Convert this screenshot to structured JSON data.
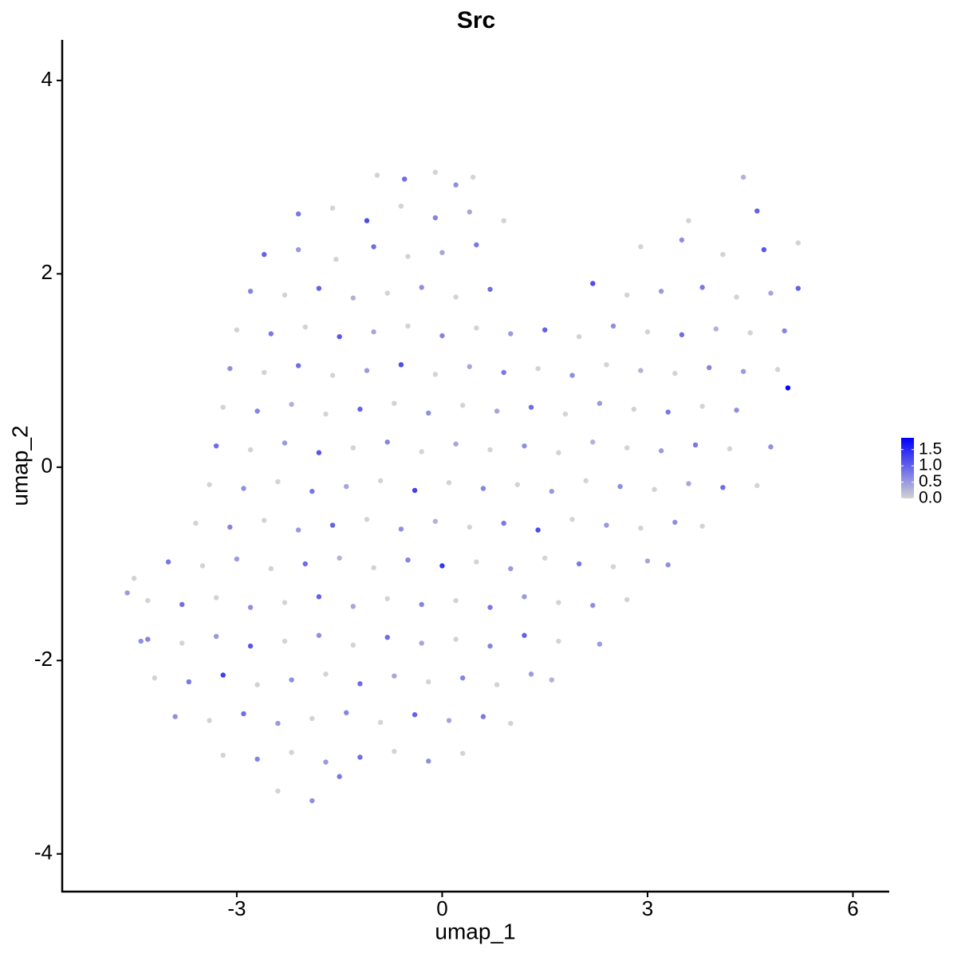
{
  "chart_data": {
    "type": "scatter",
    "title": "Src",
    "x_label": "umap_1",
    "y_label": "umap_2",
    "xlim": [
      -5.55,
      6.53
    ],
    "ylim": [
      -4.39,
      4.42
    ],
    "xticks": [
      -3,
      0,
      3,
      6
    ],
    "yticks": [
      -4,
      -2,
      0,
      2,
      4
    ],
    "color_low": "#d3d3d3",
    "color_high": "#0000ff",
    "clim": [
      0,
      1.86
    ],
    "cticks": [
      {
        "value": 0,
        "label": "0.0"
      },
      {
        "value": 0.5,
        "label": "0.5"
      },
      {
        "value": 1,
        "label": "1.0"
      },
      {
        "value": 1.5,
        "label": "1.5"
      }
    ],
    "x": [
      -0.95,
      -0.55,
      -0.1,
      0.2,
      0.45,
      4.4,
      -2.1,
      -1.6,
      -1.1,
      -0.6,
      -0.1,
      0.4,
      0.9,
      3.6,
      4.6,
      -2.6,
      -2.1,
      -1.55,
      -1.0,
      -0.5,
      0.0,
      0.5,
      2.9,
      3.5,
      4.1,
      4.7,
      5.2,
      -2.8,
      -2.3,
      -1.8,
      -1.3,
      -0.8,
      -0.3,
      0.2,
      0.7,
      2.2,
      2.7,
      3.2,
      3.8,
      4.3,
      4.8,
      5.2,
      -3.0,
      -2.5,
      -2.0,
      -1.5,
      -1.0,
      -0.5,
      0.0,
      0.5,
      1.0,
      1.5,
      2.0,
      2.5,
      3.0,
      3.5,
      4.0,
      4.5,
      5.0,
      -3.1,
      -2.6,
      -2.1,
      -1.6,
      -1.1,
      -0.6,
      -0.1,
      0.4,
      0.9,
      1.4,
      1.9,
      2.4,
      2.9,
      3.4,
      3.9,
      4.4,
      4.9,
      -3.2,
      -2.7,
      -2.2,
      -1.7,
      -1.2,
      -0.7,
      -0.2,
      0.3,
      0.8,
      1.3,
      1.8,
      2.3,
      2.8,
      3.3,
      3.8,
      4.3,
      5.05,
      -3.3,
      -2.8,
      -2.3,
      -1.8,
      -1.3,
      -0.8,
      -0.3,
      0.2,
      0.7,
      1.2,
      1.7,
      2.2,
      2.7,
      3.2,
      3.7,
      4.2,
      4.8,
      -3.4,
      -2.9,
      -2.4,
      -1.9,
      -1.4,
      -0.9,
      -0.4,
      0.1,
      0.6,
      1.1,
      1.6,
      2.1,
      2.6,
      3.1,
      3.6,
      4.1,
      4.6,
      -3.6,
      -3.1,
      -2.6,
      -2.1,
      -1.6,
      -1.1,
      -0.6,
      -0.1,
      0.4,
      0.9,
      1.4,
      1.9,
      2.4,
      2.9,
      3.4,
      3.8,
      -4.0,
      -3.5,
      -3.0,
      -2.5,
      -2.0,
      -1.5,
      -1.0,
      -0.5,
      0.0,
      0.5,
      1.0,
      1.5,
      2.0,
      2.5,
      3.0,
      3.3,
      -4.3,
      -3.8,
      -3.3,
      -2.8,
      -2.3,
      -1.8,
      -1.3,
      -0.8,
      -0.3,
      0.2,
      0.7,
      1.2,
      1.7,
      2.2,
      2.7,
      -4.3,
      -3.8,
      -3.3,
      -2.8,
      -2.3,
      -1.8,
      -1.3,
      -0.8,
      -0.3,
      0.2,
      0.7,
      1.2,
      1.7,
      2.3,
      -4.2,
      -3.7,
      -3.2,
      -2.7,
      -2.2,
      -1.7,
      -1.2,
      -0.7,
      -0.2,
      0.3,
      0.8,
      1.3,
      1.6,
      -3.9,
      -3.4,
      -2.9,
      -2.4,
      -1.9,
      -1.4,
      -0.9,
      -0.4,
      0.1,
      0.6,
      1.0,
      -3.2,
      -2.7,
      -2.2,
      -1.7,
      -1.2,
      -0.7,
      -0.2,
      0.3,
      -2.4,
      -1.9,
      -1.5,
      -4.6,
      -4.5,
      -4.4
    ],
    "y": [
      3.02,
      2.98,
      3.05,
      2.92,
      3.0,
      3.0,
      2.62,
      2.68,
      2.55,
      2.7,
      2.58,
      2.64,
      2.55,
      2.55,
      2.65,
      2.2,
      2.25,
      2.15,
      2.28,
      2.18,
      2.22,
      2.3,
      2.28,
      2.35,
      2.2,
      2.25,
      2.32,
      1.82,
      1.78,
      1.85,
      1.75,
      1.8,
      1.86,
      1.76,
      1.84,
      1.9,
      1.78,
      1.82,
      1.86,
      1.76,
      1.8,
      1.85,
      1.42,
      1.38,
      1.45,
      1.35,
      1.4,
      1.46,
      1.36,
      1.44,
      1.38,
      1.42,
      1.35,
      1.46,
      1.4,
      1.37,
      1.43,
      1.39,
      1.41,
      1.02,
      0.98,
      1.05,
      0.95,
      1.0,
      1.06,
      0.96,
      1.04,
      0.98,
      1.02,
      0.95,
      1.06,
      1.0,
      0.97,
      1.03,
      0.99,
      1.01,
      0.62,
      0.58,
      0.65,
      0.55,
      0.6,
      0.66,
      0.56,
      0.64,
      0.58,
      0.62,
      0.55,
      0.66,
      0.6,
      0.57,
      0.63,
      0.59,
      0.82,
      0.22,
      0.18,
      0.25,
      0.15,
      0.2,
      0.26,
      0.16,
      0.24,
      0.18,
      0.22,
      0.15,
      0.26,
      0.2,
      0.17,
      0.23,
      0.19,
      0.21,
      -0.18,
      -0.22,
      -0.15,
      -0.25,
      -0.2,
      -0.14,
      -0.24,
      -0.16,
      -0.22,
      -0.18,
      -0.25,
      -0.14,
      -0.2,
      -0.23,
      -0.17,
      -0.21,
      -0.19,
      -0.58,
      -0.62,
      -0.55,
      -0.65,
      -0.6,
      -0.54,
      -0.64,
      -0.56,
      -0.62,
      -0.58,
      -0.65,
      -0.54,
      -0.6,
      -0.63,
      -0.57,
      -0.61,
      -0.98,
      -1.02,
      -0.95,
      -1.05,
      -1.0,
      -0.94,
      -1.04,
      -0.96,
      -1.02,
      -0.98,
      -1.05,
      -0.94,
      -1.0,
      -1.03,
      -0.97,
      -1.01,
      -1.38,
      -1.42,
      -1.35,
      -1.45,
      -1.4,
      -1.34,
      -1.44,
      -1.36,
      -1.42,
      -1.38,
      -1.45,
      -1.34,
      -1.4,
      -1.43,
      -1.37,
      -1.78,
      -1.82,
      -1.75,
      -1.85,
      -1.8,
      -1.74,
      -1.84,
      -1.76,
      -1.82,
      -1.78,
      -1.85,
      -1.74,
      -1.8,
      -1.83,
      -2.18,
      -2.22,
      -2.15,
      -2.25,
      -2.2,
      -2.14,
      -2.24,
      -2.16,
      -2.22,
      -2.18,
      -2.25,
      -2.14,
      -2.2,
      -2.58,
      -2.62,
      -2.55,
      -2.65,
      -2.6,
      -2.54,
      -2.64,
      -2.56,
      -2.62,
      -2.58,
      -2.65,
      -2.98,
      -3.02,
      -2.95,
      -3.05,
      -3.0,
      -2.94,
      -3.04,
      -2.96,
      -3.35,
      -3.45,
      -3.2,
      -1.3,
      -1.15,
      -1.8
    ],
    "values": [
      0,
      0.9,
      0,
      0.6,
      0,
      0.3,
      0.8,
      0,
      1.2,
      0,
      0.7,
      0.4,
      0,
      0,
      1.0,
      1.0,
      0.5,
      0,
      0.9,
      0,
      0.4,
      0.8,
      0,
      0.6,
      0,
      1.1,
      0,
      0.7,
      0,
      1.0,
      0.3,
      0,
      0.6,
      0,
      0.9,
      1.2,
      0,
      0.5,
      0.8,
      0,
      0.4,
      1.0,
      0,
      0.8,
      0,
      1.1,
      0.4,
      0,
      0.7,
      0,
      0.5,
      1.0,
      0,
      0.6,
      0,
      0.9,
      0.3,
      0,
      0.7,
      0.6,
      0,
      0.9,
      0,
      0.5,
      1.2,
      0,
      0.4,
      0.8,
      0,
      0.6,
      0,
      0.3,
      0,
      0.7,
      0.5,
      0,
      0,
      0.7,
      0.3,
      0,
      1.0,
      0,
      0.6,
      0,
      0.4,
      0.9,
      0,
      0.5,
      0,
      0.8,
      0,
      0.6,
      1.85,
      0.9,
      0,
      0.5,
      1.1,
      0,
      0.7,
      0,
      0.4,
      0,
      0.6,
      0,
      0.3,
      0,
      0.5,
      0.8,
      0,
      0.6,
      0,
      0.6,
      0,
      0.8,
      0.4,
      0,
      1.3,
      0,
      0.7,
      0,
      0.5,
      0,
      0.6,
      0,
      0.4,
      0.9,
      0,
      0,
      0.7,
      0,
      0.5,
      1.0,
      0,
      0.6,
      0.3,
      0,
      0.8,
      1.2,
      0,
      0.5,
      0,
      0.6,
      0,
      0.8,
      0,
      0.5,
      0,
      0.9,
      0.3,
      0,
      0.7,
      1.4,
      0,
      0.5,
      0,
      0.8,
      0,
      0.4,
      0.6,
      0,
      0.9,
      0,
      0.6,
      0,
      1.0,
      0.4,
      0,
      0.7,
      0,
      0.8,
      0.5,
      0,
      0.6,
      0,
      0.7,
      0,
      0.5,
      1.1,
      0,
      0.6,
      0,
      0.9,
      0.4,
      0,
      0.7,
      1.0,
      0,
      0.5,
      0,
      0.8,
      1.3,
      0,
      0.6,
      0,
      0.9,
      0.4,
      0,
      0.7,
      0,
      0.5,
      0.3,
      0.6,
      0,
      0.9,
      0.5,
      0,
      0.7,
      0,
      1.0,
      0.4,
      0.8,
      0,
      0,
      0.7,
      0,
      0.5,
      0.9,
      0,
      0.6,
      0,
      0,
      0.6,
      0.8,
      0.5,
      0,
      0.6
    ]
  }
}
